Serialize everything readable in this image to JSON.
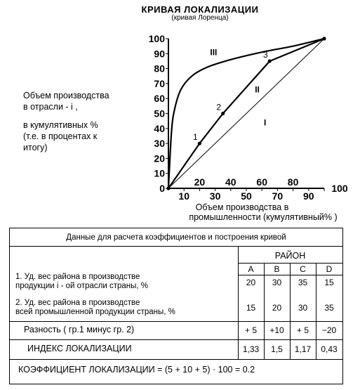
{
  "header": {
    "title": "КРИВАЯ ЛОКАЛИЗАЦИИ",
    "subtitle": "(кривая Лоренца)"
  },
  "y_axis_label_lines": [
    "Объем производства",
    "в отрасли - i ,",
    "в кумулятивных %",
    "(т.е. в процентах к",
    "итогу)"
  ],
  "x_axis_label_lines": [
    "Объем производства в",
    "промышленности (кумулятивный% )"
  ],
  "chart_data": {
    "type": "line",
    "xlim": [
      0,
      100
    ],
    "ylim": [
      0,
      100
    ],
    "y_ticks": [
      "0",
      "10",
      "20",
      "30",
      "40",
      "50",
      "60",
      "70",
      "80",
      "90",
      "100"
    ],
    "x_ticks_bottom": [
      "10",
      "30",
      "50",
      "70",
      "90"
    ],
    "x_ticks_upper": [
      "20",
      "40",
      "60",
      "80"
    ],
    "x_tick_100": "100",
    "series": [
      {
        "name": "I",
        "style": "thin",
        "x": [
          0,
          100
        ],
        "y": [
          0,
          100
        ]
      },
      {
        "name": "II",
        "style": "bold",
        "x": [
          0,
          20,
          35,
          65,
          100
        ],
        "y": [
          0,
          30,
          50,
          85,
          100
        ]
      },
      {
        "name": "III",
        "style": "bold-curve",
        "x": [
          0,
          2,
          4,
          8,
          15,
          25,
          40,
          60,
          80,
          100
        ],
        "y": [
          0,
          38,
          53,
          66,
          75,
          81,
          86,
          91,
          95,
          100
        ]
      }
    ],
    "point_labels": [
      {
        "text": "1",
        "x": 20,
        "y": 30
      },
      {
        "text": "2",
        "x": 35,
        "y": 50
      },
      {
        "text": "3",
        "x": 65,
        "y": 85
      }
    ],
    "curve_labels": [
      {
        "text": "I",
        "x": 62,
        "y": 42
      },
      {
        "text": "II",
        "x": 57,
        "y": 64
      },
      {
        "text": "III",
        "x": 29,
        "y": 89
      }
    ]
  },
  "table": {
    "title": "Данные для расчета коэффициентов и построения кривой",
    "region_header": "РАЙОН",
    "regions": [
      "A",
      "B",
      "C",
      "D"
    ],
    "row1_label_lines": [
      "1.  Уд. вес района в производстве",
      "     продукции  i - ой отрасли страны, %"
    ],
    "row1_values": [
      "20",
      "30",
      "35",
      "15"
    ],
    "row2_label_lines": [
      "2.  Уд. вес района в производстве",
      "     всей промышленной продукции страны, %"
    ],
    "row2_values": [
      "15",
      "20",
      "30",
      "35"
    ],
    "diff_label": "Разность ( гр.1  минус  гр. 2)",
    "diff_values": [
      "+ 5",
      "+10",
      "+ 5",
      "−20"
    ],
    "index_label": "ИНДЕКС ЛОКАЛИЗАЦИИ",
    "index_values": [
      "1,33",
      "1,5",
      "1,17",
      "0,43"
    ],
    "coef_formula": "КОЭФФИЦИЕНТ ЛОКАЛИЗАЦИИ = (5  +  10  +  5) · 100 = 0.2"
  }
}
